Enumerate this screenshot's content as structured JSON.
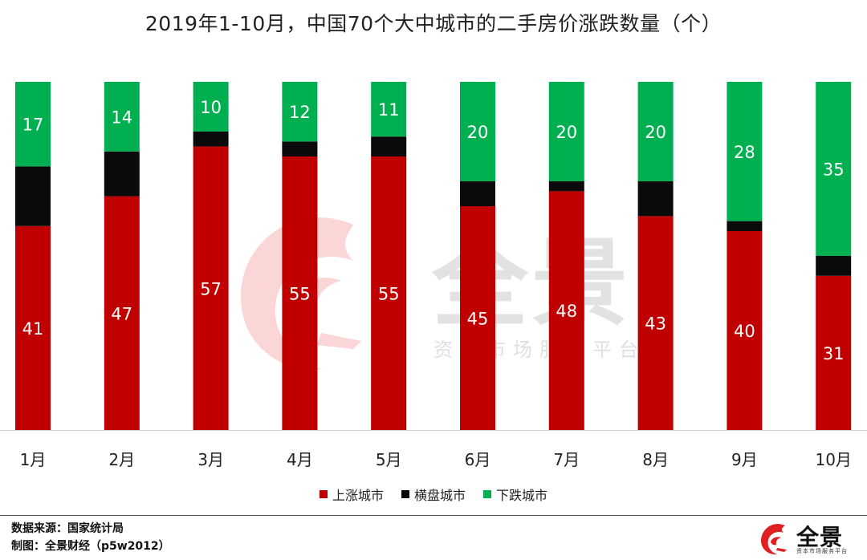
{
  "title": "2019年1-10月，中国70个大中城市的二手房价涨跌数量（个）",
  "colors": {
    "up": "#c00000",
    "flat": "#0a0a0a",
    "down": "#00b050"
  },
  "legend": [
    "上涨城市",
    "横盘城市",
    "下跌城市"
  ],
  "footer": {
    "source": "数据来源：国家统计局",
    "made_by": "制图：全景财经（p5w2012）"
  },
  "logo": {
    "text": "全景",
    "sub": "资本市场服务平台"
  },
  "watermark": {
    "text": "全景",
    "sub": "资本市场服务平台"
  },
  "chart_data": {
    "type": "bar",
    "stacked": true,
    "categories": [
      "1月",
      "2月",
      "3月",
      "4月",
      "5月",
      "6月",
      "7月",
      "8月",
      "9月",
      "10月"
    ],
    "series": [
      {
        "name": "上涨城市",
        "values": [
          41,
          47,
          57,
          55,
          55,
          45,
          48,
          43,
          40,
          31
        ]
      },
      {
        "name": "横盘城市",
        "values": [
          12,
          9,
          3,
          3,
          4,
          5,
          2,
          7,
          2,
          4
        ]
      },
      {
        "name": "下跌城市",
        "values": [
          17,
          14,
          10,
          12,
          11,
          20,
          20,
          20,
          28,
          35
        ]
      }
    ],
    "ylim": [
      0,
      70
    ],
    "data_labels": {
      "上涨城市": true,
      "横盘城市": false,
      "下跌城市": true
    },
    "legend_position": "bottom",
    "grid": false
  }
}
